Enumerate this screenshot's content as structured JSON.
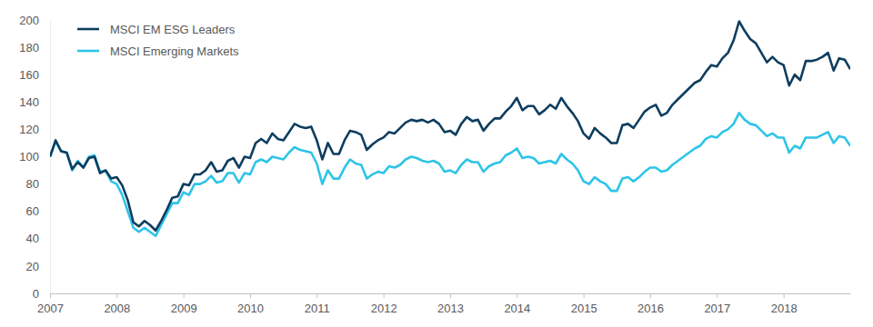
{
  "chart_data": {
    "type": "line",
    "categories": [
      "2007",
      null,
      null,
      null,
      null,
      null,
      null,
      null,
      null,
      null,
      null,
      null,
      "2008",
      null,
      null,
      null,
      null,
      null,
      null,
      null,
      null,
      null,
      null,
      null,
      "2009",
      null,
      null,
      null,
      null,
      null,
      null,
      null,
      null,
      null,
      null,
      null,
      "2010",
      null,
      null,
      null,
      null,
      null,
      null,
      null,
      null,
      null,
      null,
      null,
      "2011",
      null,
      null,
      null,
      null,
      null,
      null,
      null,
      null,
      null,
      null,
      null,
      "2012",
      null,
      null,
      null,
      null,
      null,
      null,
      null,
      null,
      null,
      null,
      null,
      "2013",
      null,
      null,
      null,
      null,
      null,
      null,
      null,
      null,
      null,
      null,
      null,
      "2014",
      null,
      null,
      null,
      null,
      null,
      null,
      null,
      null,
      null,
      null,
      null,
      "2015",
      null,
      null,
      null,
      null,
      null,
      null,
      null,
      null,
      null,
      null,
      null,
      "2016",
      null,
      null,
      null,
      null,
      null,
      null,
      null,
      null,
      null,
      null,
      null,
      "2017",
      null,
      null,
      null,
      null,
      null,
      null,
      null,
      null,
      null,
      null,
      null,
      "2018",
      null,
      null,
      null,
      null,
      null,
      null,
      null,
      null,
      null,
      null,
      null,
      null
    ],
    "series": [
      {
        "name": "MSCI EM ESG Leaders",
        "color": "#0e3d5f",
        "values": [
          100,
          112,
          104,
          103,
          91,
          96,
          92,
          99,
          100,
          88,
          90,
          84,
          85,
          79,
          68,
          52,
          49,
          53,
          50,
          46,
          53,
          61,
          70,
          71,
          80,
          79,
          87,
          87,
          90,
          96,
          89,
          90,
          97,
          99,
          92,
          100,
          99,
          110,
          113,
          110,
          117,
          113,
          112,
          118,
          124,
          122,
          121,
          122,
          112,
          98,
          110,
          102,
          102,
          112,
          119,
          118,
          116,
          105,
          109,
          112,
          114,
          118,
          117,
          121,
          125,
          127,
          126,
          127,
          125,
          127,
          124,
          118,
          119,
          116,
          124,
          129,
          126,
          127,
          119,
          124,
          128,
          128,
          133,
          137,
          143,
          134,
          137,
          137,
          131,
          134,
          138,
          135,
          143,
          137,
          132,
          126,
          117,
          113,
          121,
          117,
          114,
          110,
          110,
          123,
          124,
          121,
          127,
          133,
          136,
          138,
          130,
          132,
          138,
          142,
          146,
          150,
          154,
          156,
          162,
          167,
          166,
          172,
          176,
          185,
          199,
          192,
          186,
          183,
          176,
          169,
          173,
          169,
          167,
          152,
          160,
          156,
          170,
          170,
          171,
          173,
          176,
          163,
          172,
          171,
          164
        ]
      },
      {
        "name": "MSCI Emerging Markets",
        "color": "#2ec4e8",
        "values": [
          100,
          111,
          104,
          103,
          90,
          97,
          92,
          100,
          101,
          89,
          90,
          82,
          80,
          72,
          60,
          48,
          45,
          48,
          45,
          42,
          50,
          58,
          66,
          66,
          74,
          72,
          80,
          80,
          82,
          86,
          81,
          82,
          88,
          88,
          81,
          88,
          87,
          96,
          98,
          96,
          100,
          99,
          98,
          103,
          107,
          105,
          104,
          103,
          95,
          80,
          90,
          84,
          84,
          92,
          98,
          95,
          94,
          84,
          87,
          89,
          88,
          93,
          92,
          94,
          98,
          100,
          99,
          97,
          96,
          97,
          95,
          89,
          90,
          88,
          94,
          98,
          96,
          96,
          89,
          93,
          95,
          96,
          101,
          103,
          106,
          99,
          100,
          99,
          95,
          96,
          97,
          95,
          102,
          98,
          95,
          90,
          82,
          80,
          85,
          82,
          80,
          75,
          75,
          84,
          85,
          82,
          85,
          89,
          92,
          92,
          89,
          90,
          94,
          97,
          100,
          103,
          106,
          108,
          113,
          115,
          114,
          118,
          120,
          124,
          132,
          127,
          124,
          123,
          119,
          115,
          117,
          114,
          114,
          103,
          108,
          106,
          114,
          114,
          114,
          116,
          118,
          110,
          115,
          114,
          108
        ]
      }
    ],
    "ylim": [
      0,
      200
    ],
    "yticks": [
      0,
      20,
      40,
      60,
      80,
      100,
      120,
      140,
      160,
      180,
      200
    ],
    "grid": false,
    "legend": "upper left"
  }
}
